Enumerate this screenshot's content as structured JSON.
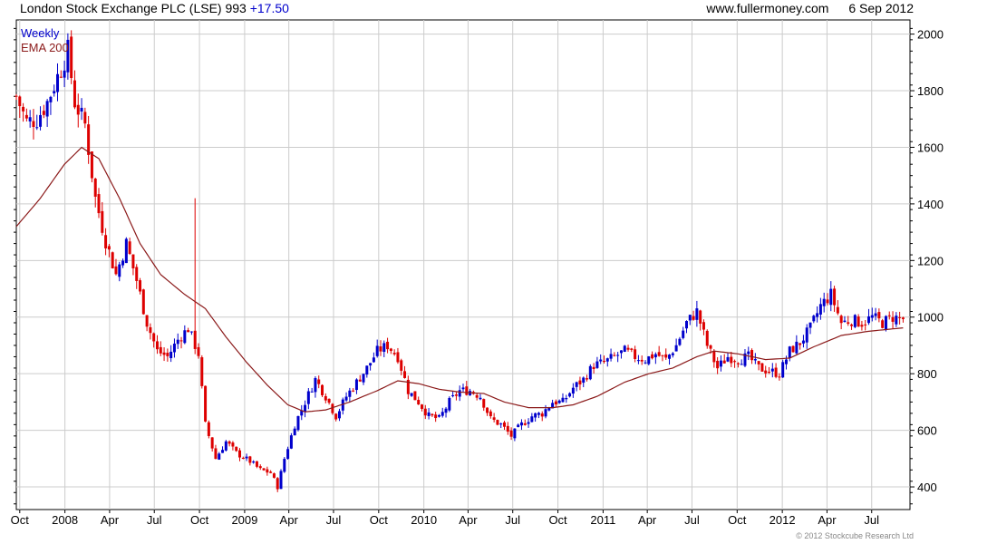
{
  "header": {
    "title": "London Stock Exchange PLC (LSE)",
    "last_price": "993",
    "change": "+17.50",
    "source": "www.fullermoney.com",
    "date": "6 Sep 2012"
  },
  "footer": {
    "copyright": "© 2012 Stockcube Research Ltd"
  },
  "colors": {
    "up": "#0000cc",
    "down": "#dd0000",
    "ema": "#8b1a1a",
    "grid": "#cccccc",
    "frame": "#000000"
  },
  "chart_data": {
    "type": "candlestick",
    "title": "London Stock Exchange PLC (LSE)",
    "grid": true,
    "legend": [
      {
        "label": "Weekly",
        "color": "#0000cc"
      },
      {
        "label": "EMA 200",
        "color": "#8b1a1a"
      }
    ],
    "y_axis": {
      "position": "right",
      "range": [
        320,
        2050
      ],
      "ticks": [
        400,
        600,
        800,
        1000,
        1200,
        1400,
        1600,
        1800,
        2000
      ]
    },
    "x_axis": {
      "range": [
        "2007-09-24",
        "2012-09-17"
      ],
      "ticks": [
        {
          "date": "2007-10-01",
          "label": "Oct"
        },
        {
          "date": "2008-01-01",
          "label": "2008"
        },
        {
          "date": "2008-04-01",
          "label": "Apr"
        },
        {
          "date": "2008-07-01",
          "label": "Jul"
        },
        {
          "date": "2008-10-01",
          "label": "Oct"
        },
        {
          "date": "2009-01-01",
          "label": "2009"
        },
        {
          "date": "2009-04-01",
          "label": "Apr"
        },
        {
          "date": "2009-07-01",
          "label": "Jul"
        },
        {
          "date": "2009-10-01",
          "label": "Oct"
        },
        {
          "date": "2010-01-01",
          "label": "2010"
        },
        {
          "date": "2010-04-01",
          "label": "Apr"
        },
        {
          "date": "2010-07-01",
          "label": "Jul"
        },
        {
          "date": "2010-10-01",
          "label": "Oct"
        },
        {
          "date": "2011-01-01",
          "label": "2011"
        },
        {
          "date": "2011-04-01",
          "label": "Apr"
        },
        {
          "date": "2011-07-01",
          "label": "Jul"
        },
        {
          "date": "2011-10-01",
          "label": "Oct"
        },
        {
          "date": "2012-01-01",
          "label": "2012"
        },
        {
          "date": "2012-04-01",
          "label": "Apr"
        },
        {
          "date": "2012-07-01",
          "label": "Jul"
        }
      ]
    },
    "weekly_close_anchors": [
      [
        "2007-09-24",
        1780
      ],
      [
        "2007-10-15",
        1690
      ],
      [
        "2007-11-05",
        1700
      ],
      [
        "2007-11-26",
        1760
      ],
      [
        "2007-12-17",
        1850
      ],
      [
        "2008-01-07",
        1940
      ],
      [
        "2008-01-21",
        1760
      ],
      [
        "2008-02-11",
        1680
      ],
      [
        "2008-03-03",
        1420
      ],
      [
        "2008-03-24",
        1270
      ],
      [
        "2008-04-14",
        1150
      ],
      [
        "2008-05-05",
        1260
      ],
      [
        "2008-05-26",
        1130
      ],
      [
        "2008-06-16",
        980
      ],
      [
        "2008-07-07",
        880
      ],
      [
        "2008-07-28",
        860
      ],
      [
        "2008-08-18",
        920
      ],
      [
        "2008-09-08",
        960
      ],
      [
        "2008-09-29",
        870
      ],
      [
        "2008-10-13",
        620
      ],
      [
        "2008-11-03",
        500
      ],
      [
        "2008-11-24",
        560
      ],
      [
        "2008-12-15",
        520
      ],
      [
        "2009-01-12",
        490
      ],
      [
        "2009-02-02",
        460
      ],
      [
        "2009-02-23",
        450
      ],
      [
        "2009-03-09",
        400
      ],
      [
        "2009-03-23",
        500
      ],
      [
        "2009-04-13",
        620
      ],
      [
        "2009-05-04",
        700
      ],
      [
        "2009-05-25",
        780
      ],
      [
        "2009-06-15",
        720
      ],
      [
        "2009-07-06",
        650
      ],
      [
        "2009-07-27",
        720
      ],
      [
        "2009-08-17",
        770
      ],
      [
        "2009-09-07",
        820
      ],
      [
        "2009-09-28",
        880
      ],
      [
        "2009-10-19",
        900
      ],
      [
        "2009-11-09",
        860
      ],
      [
        "2009-11-30",
        740
      ],
      [
        "2009-12-21",
        700
      ],
      [
        "2010-01-11",
        650
      ],
      [
        "2010-02-01",
        640
      ],
      [
        "2010-02-22",
        700
      ],
      [
        "2010-03-15",
        740
      ],
      [
        "2010-04-05",
        740
      ],
      [
        "2010-04-26",
        720
      ],
      [
        "2010-05-17",
        640
      ],
      [
        "2010-06-07",
        620
      ],
      [
        "2010-06-28",
        580
      ],
      [
        "2010-07-19",
        620
      ],
      [
        "2010-08-09",
        650
      ],
      [
        "2010-08-30",
        660
      ],
      [
        "2010-09-20",
        700
      ],
      [
        "2010-10-11",
        700
      ],
      [
        "2010-11-01",
        750
      ],
      [
        "2010-11-22",
        780
      ],
      [
        "2010-12-13",
        830
      ],
      [
        "2011-01-03",
        840
      ],
      [
        "2011-01-24",
        860
      ],
      [
        "2011-02-14",
        880
      ],
      [
        "2011-03-07",
        860
      ],
      [
        "2011-03-28",
        850
      ],
      [
        "2011-04-18",
        870
      ],
      [
        "2011-05-09",
        850
      ],
      [
        "2011-05-30",
        900
      ],
      [
        "2011-06-20",
        980
      ],
      [
        "2011-07-11",
        1020
      ],
      [
        "2011-08-01",
        900
      ],
      [
        "2011-08-22",
        820
      ],
      [
        "2011-09-12",
        860
      ],
      [
        "2011-10-03",
        850
      ],
      [
        "2011-10-24",
        860
      ],
      [
        "2011-11-14",
        820
      ],
      [
        "2011-12-05",
        810
      ],
      [
        "2011-12-26",
        800
      ],
      [
        "2012-01-16",
        880
      ],
      [
        "2012-02-06",
        910
      ],
      [
        "2012-02-27",
        960
      ],
      [
        "2012-03-19",
        1040
      ],
      [
        "2012-04-09",
        1080
      ],
      [
        "2012-04-30",
        980
      ],
      [
        "2012-05-21",
        990
      ],
      [
        "2012-06-11",
        980
      ],
      [
        "2012-07-02",
        1000
      ],
      [
        "2012-07-23",
        980
      ],
      [
        "2012-08-13",
        1000
      ],
      [
        "2012-09-03",
        993
      ]
    ],
    "ema200_anchors": [
      [
        "2007-09-24",
        1320
      ],
      [
        "2007-11-12",
        1420
      ],
      [
        "2007-12-31",
        1540
      ],
      [
        "2008-02-04",
        1600
      ],
      [
        "2008-03-10",
        1560
      ],
      [
        "2008-04-21",
        1420
      ],
      [
        "2008-06-02",
        1260
      ],
      [
        "2008-07-14",
        1150
      ],
      [
        "2008-09-01",
        1080
      ],
      [
        "2008-10-13",
        1030
      ],
      [
        "2008-11-24",
        930
      ],
      [
        "2009-01-05",
        840
      ],
      [
        "2009-02-16",
        760
      ],
      [
        "2009-03-30",
        690
      ],
      [
        "2009-05-04",
        665
      ],
      [
        "2009-06-15",
        672
      ],
      [
        "2009-08-03",
        700
      ],
      [
        "2009-09-28",
        740
      ],
      [
        "2009-11-09",
        775
      ],
      [
        "2009-12-21",
        765
      ],
      [
        "2010-02-01",
        745
      ],
      [
        "2010-03-15",
        735
      ],
      [
        "2010-05-03",
        730
      ],
      [
        "2010-06-14",
        700
      ],
      [
        "2010-08-02",
        680
      ],
      [
        "2010-09-20",
        680
      ],
      [
        "2010-11-01",
        690
      ],
      [
        "2010-12-20",
        720
      ],
      [
        "2011-02-14",
        770
      ],
      [
        "2011-04-04",
        800
      ],
      [
        "2011-05-23",
        820
      ],
      [
        "2011-07-11",
        860
      ],
      [
        "2011-08-15",
        880
      ],
      [
        "2011-10-03",
        870
      ],
      [
        "2011-11-28",
        850
      ],
      [
        "2012-01-16",
        855
      ],
      [
        "2012-03-05",
        895
      ],
      [
        "2012-04-30",
        935
      ],
      [
        "2012-06-25",
        950
      ],
      [
        "2012-09-03",
        962
      ]
    ]
  }
}
